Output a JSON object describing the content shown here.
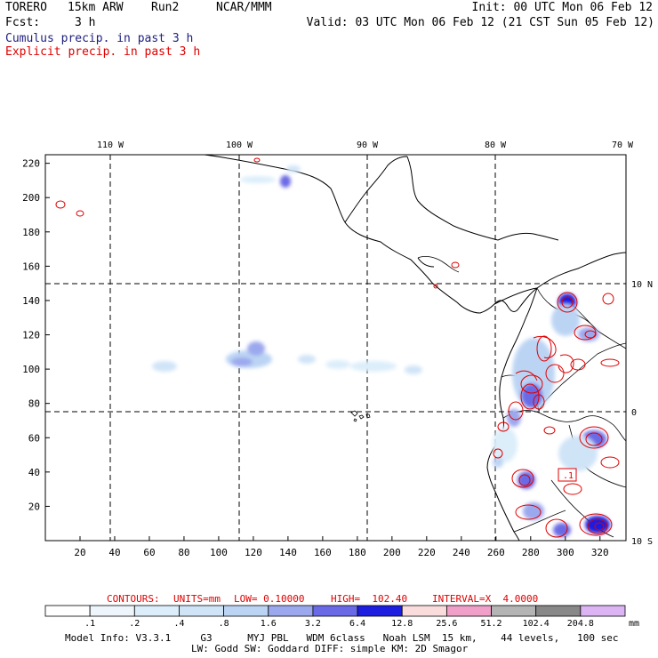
{
  "header": {
    "model": "TORERO",
    "resolution": "15km ARW",
    "run": "Run2",
    "org": "NCAR/MMM",
    "init": "Init: 00 UTC Mon 06 Feb 12",
    "fcst_label": "Fcst:",
    "fcst_value": "3 h",
    "valid": "Valid: 03 UTC Mon 06 Feb 12 (21 CST Sun 05 Feb 12)"
  },
  "fields": {
    "cumulus": "Cumulus precip. in past 3 h",
    "explicit": "Explicit precip. in past 3 h",
    "cumulus_color": "#202080",
    "explicit_color": "#e00000"
  },
  "chart_data": {
    "type": "heatmap",
    "x_ticks": [
      20,
      40,
      60,
      80,
      100,
      120,
      140,
      160,
      180,
      200,
      220,
      240,
      260,
      280,
      300,
      320
    ],
    "y_ticks": [
      20,
      40,
      60,
      80,
      100,
      120,
      140,
      160,
      180,
      200,
      220
    ],
    "xlim": [
      0,
      335
    ],
    "ylim": [
      0,
      225
    ],
    "lon_labels": [
      "110 W",
      "100 W",
      "90 W",
      "80 W",
      "70 W"
    ],
    "lat_labels": [
      "10 N",
      "0",
      "10 S"
    ],
    "grid": "dashed lat/lon lines",
    "contour_box_label": ".1",
    "contours": {
      "label": "CONTOURS:",
      "units": "UNITS=mm",
      "low": "LOW= 0.10000",
      "high": "HIGH=  102.40",
      "interval": "INTERVAL=X  4.0000"
    },
    "colorbar": {
      "levels": [
        ".1",
        ".2",
        ".4",
        ".8",
        "1.6",
        "3.2",
        "6.4",
        "12.8",
        "25.6",
        "51.2",
        "102.4",
        "204.8"
      ],
      "unit": "mm",
      "colors": [
        "#ffffff",
        "#eef6fc",
        "#dceefa",
        "#d0e4f8",
        "#bcd4f4",
        "#9ca8ee",
        "#6a6ae6",
        "#1e1ee0",
        "#fadcdc",
        "#f0a0c8",
        "#b4b4b4",
        "#888888",
        "#dcb4f4"
      ]
    }
  },
  "footer": {
    "line1": "Model Info: V3.3.1     G3      MYJ PBL   WDM 6class   Noah LSM  15 km,    44 levels,   100 sec",
    "line2": "LW: Godd SW: Goddard DIFF: simple KM: 2D Smagor"
  }
}
